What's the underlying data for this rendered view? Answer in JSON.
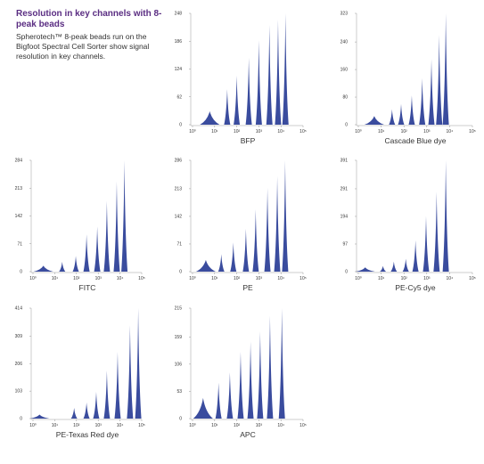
{
  "header": {
    "title": "Resolution in key channels with 8-peak beads",
    "text": "Spherotech™ 8-peak beads run on the Bigfoot Spectral Cell Sorter show signal resolution in key channels."
  },
  "chart_data": [
    {
      "type": "histogram",
      "title": "BFP",
      "xlog": true,
      "xlim": [
        1,
        100000
      ],
      "ylim": [
        0,
        248
      ],
      "xticks": [
        {
          "value": 1,
          "label": "10⁰"
        },
        {
          "value": 10,
          "label": "10¹"
        },
        {
          "value": 100,
          "label": "10²"
        },
        {
          "value": 1000,
          "label": "10³"
        },
        {
          "value": 10000,
          "label": "10⁴"
        },
        {
          "value": 100000,
          "label": "10⁵"
        }
      ],
      "yticks": [
        0,
        62,
        124,
        186,
        248
      ],
      "color": "#3a4c9e",
      "x": [
        6,
        37,
        100,
        350,
        1000,
        3000,
        7400,
        16000
      ],
      "values": [
        30,
        79,
        109,
        149,
        188,
        222,
        234,
        248
      ]
    },
    {
      "type": "histogram",
      "title": "Cascade Blue dye",
      "xlog": true,
      "xlim": [
        1,
        100000
      ],
      "ylim": [
        0,
        323
      ],
      "xticks": [
        {
          "value": 1,
          "label": "10⁰"
        },
        {
          "value": 10,
          "label": "10¹"
        },
        {
          "value": 100,
          "label": "10²"
        },
        {
          "value": 1000,
          "label": "10³"
        },
        {
          "value": 10000,
          "label": "10⁴"
        },
        {
          "value": 100000,
          "label": "10⁵"
        }
      ],
      "yticks": [
        0,
        80,
        160,
        240,
        323
      ],
      "color": "#3a4c9e",
      "x": [
        5,
        30,
        75,
        220,
        630,
        1600,
        3500,
        6800
      ],
      "values": [
        25,
        45,
        60,
        85,
        135,
        190,
        260,
        323
      ]
    },
    {
      "type": "histogram",
      "title": "FITC",
      "xlog": true,
      "xlim": [
        1,
        100000
      ],
      "ylim": [
        0,
        284
      ],
      "xticks": [
        {
          "value": 1,
          "label": "10⁰"
        },
        {
          "value": 10,
          "label": "10¹"
        },
        {
          "value": 100,
          "label": "10²"
        },
        {
          "value": 1000,
          "label": "10³"
        },
        {
          "value": 10000,
          "label": "10⁴"
        },
        {
          "value": 100000,
          "label": "10⁵"
        }
      ],
      "yticks": [
        0,
        71,
        142,
        213,
        284
      ],
      "color": "#3a4c9e",
      "x": [
        3,
        22,
        93,
        290,
        900,
        2500,
        7100,
        16000
      ],
      "values": [
        15,
        25,
        40,
        95,
        115,
        180,
        230,
        284
      ]
    },
    {
      "type": "histogram",
      "title": "PE",
      "xlog": true,
      "xlim": [
        1,
        100000
      ],
      "ylim": [
        0,
        286
      ],
      "xticks": [
        {
          "value": 1,
          "label": "10⁰"
        },
        {
          "value": 10,
          "label": "10¹"
        },
        {
          "value": 100,
          "label": "10²"
        },
        {
          "value": 1000,
          "label": "10³"
        },
        {
          "value": 10000,
          "label": "10⁴"
        },
        {
          "value": 100000,
          "label": "10⁵"
        }
      ],
      "yticks": [
        0,
        71,
        142,
        213,
        286
      ],
      "color": "#3a4c9e",
      "x": [
        4,
        20,
        70,
        260,
        720,
        2450,
        6800,
        15500
      ],
      "values": [
        30,
        45,
        75,
        110,
        160,
        215,
        245,
        286
      ]
    },
    {
      "type": "histogram",
      "title": "PE-Cy5 dye",
      "xlog": true,
      "xlim": [
        1,
        100000
      ],
      "ylim": [
        0,
        391
      ],
      "xticks": [
        {
          "value": 1,
          "label": "10⁰"
        },
        {
          "value": 10,
          "label": "10¹"
        },
        {
          "value": 100,
          "label": "10²"
        },
        {
          "value": 1000,
          "label": "10³"
        },
        {
          "value": 10000,
          "label": "10⁴"
        },
        {
          "value": 100000,
          "label": "10⁵"
        }
      ],
      "yticks": [
        0,
        97,
        194,
        291,
        391
      ],
      "color": "#3a4c9e",
      "x": [
        2,
        12,
        36,
        120,
        320,
        930,
        2700,
        6800
      ],
      "values": [
        15,
        20,
        35,
        45,
        110,
        195,
        280,
        391
      ]
    },
    {
      "type": "histogram",
      "title": "PE-Texas Red dye",
      "xlog": true,
      "xlim": [
        1,
        100000
      ],
      "ylim": [
        0,
        414
      ],
      "xticks": [
        {
          "value": 1,
          "label": "10⁰"
        },
        {
          "value": 10,
          "label": "10¹"
        },
        {
          "value": 100,
          "label": "10²"
        },
        {
          "value": 1000,
          "label": "10³"
        },
        {
          "value": 10000,
          "label": "10⁴"
        },
        {
          "value": 100000,
          "label": "10⁵"
        }
      ],
      "yticks": [
        0,
        103,
        206,
        309,
        414
      ],
      "color": "#3a4c9e",
      "x": [
        2,
        78,
        290,
        810,
        2500,
        7800,
        29000,
        69000
      ],
      "values": [
        15,
        40,
        60,
        100,
        180,
        250,
        350,
        414
      ]
    },
    {
      "type": "histogram",
      "title": "APC",
      "xlog": true,
      "xlim": [
        1,
        100000
      ],
      "ylim": [
        0,
        215
      ],
      "xticks": [
        {
          "value": 1,
          "label": "10⁰"
        },
        {
          "value": 10,
          "label": "10¹"
        },
        {
          "value": 100,
          "label": "10²"
        },
        {
          "value": 1000,
          "label": "10³"
        },
        {
          "value": 10000,
          "label": "10⁴"
        },
        {
          "value": 100000,
          "label": "10⁵"
        }
      ],
      "yticks": [
        0,
        53,
        106,
        159,
        215
      ],
      "color": "#3a4c9e",
      "x": [
        3,
        15,
        49,
        150,
        420,
        1150,
        3200,
        11000
      ],
      "values": [
        40,
        70,
        90,
        130,
        150,
        170,
        200,
        215
      ]
    }
  ]
}
